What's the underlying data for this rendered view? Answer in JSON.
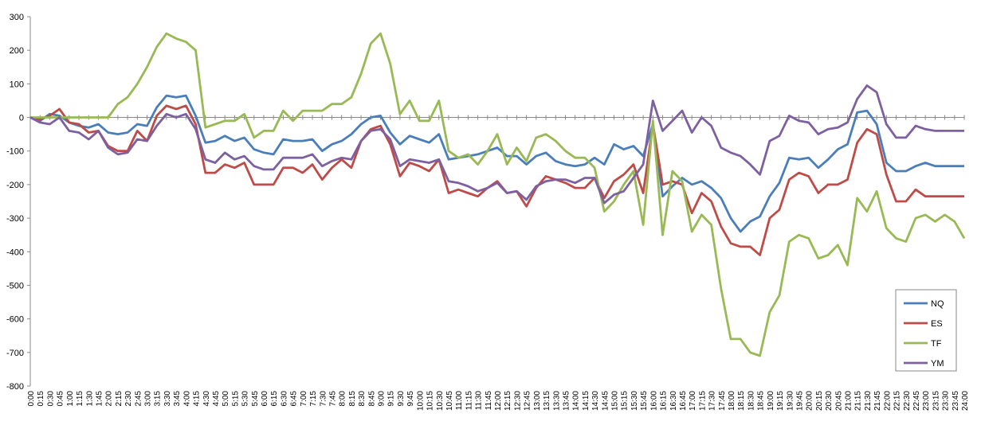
{
  "chart_data": {
    "type": "line",
    "ylim": [
      -800,
      300
    ],
    "yticks": [
      300,
      200,
      100,
      0,
      -100,
      -200,
      -300,
      -400,
      -500,
      -600,
      -700,
      -800
    ],
    "x": [
      "0:00",
      "0:15",
      "0:30",
      "0:45",
      "1:00",
      "1:15",
      "1:30",
      "1:45",
      "2:00",
      "2:15",
      "2:30",
      "2:45",
      "3:00",
      "3:15",
      "3:30",
      "3:45",
      "4:00",
      "4:15",
      "4:30",
      "4:45",
      "5:00",
      "5:15",
      "5:30",
      "5:45",
      "6:00",
      "6:15",
      "6:30",
      "6:45",
      "7:00",
      "7:15",
      "7:30",
      "7:45",
      "8:00",
      "8:15",
      "8:30",
      "8:45",
      "9:00",
      "9:15",
      "9:30",
      "9:45",
      "10:00",
      "10:15",
      "10:30",
      "10:45",
      "11:00",
      "11:15",
      "11:30",
      "11:45",
      "12:00",
      "12:15",
      "12:30",
      "12:45",
      "13:00",
      "13:15",
      "13:30",
      "13:45",
      "14:00",
      "14:15",
      "14:30",
      "14:45",
      "15:00",
      "15:15",
      "15:30",
      "15:45",
      "16:00",
      "16:15",
      "16:30",
      "16:45",
      "17:00",
      "17:15",
      "17:30",
      "17:45",
      "18:00",
      "18:15",
      "18:30",
      "18:45",
      "19:00",
      "19:15",
      "19:30",
      "19:45",
      "20:00",
      "20:15",
      "20:30",
      "20:45",
      "21:00",
      "21:15",
      "21:30",
      "21:45",
      "22:00",
      "22:15",
      "22:30",
      "22:45",
      "23:00",
      "23:15",
      "23:30",
      "23:45",
      "24:00"
    ],
    "series": [
      {
        "name": "NQ",
        "color": "#4a7ebb",
        "values": [
          0,
          -10,
          10,
          5,
          -15,
          -25,
          -30,
          -20,
          -45,
          -50,
          -45,
          -20,
          -25,
          30,
          65,
          60,
          65,
          5,
          -75,
          -70,
          -55,
          -70,
          -60,
          -95,
          -105,
          -110,
          -65,
          -70,
          -70,
          -65,
          -100,
          -80,
          -70,
          -50,
          -20,
          0,
          5,
          -45,
          -80,
          -55,
          -65,
          -75,
          -50,
          -125,
          -120,
          -115,
          -110,
          -100,
          -90,
          -115,
          -115,
          -140,
          -115,
          -105,
          -130,
          -140,
          -145,
          -140,
          -120,
          -140,
          -80,
          -95,
          -85,
          -115,
          -20,
          -235,
          -205,
          -180,
          -200,
          -190,
          -210,
          -240,
          -300,
          -340,
          -310,
          -295,
          -235,
          -195,
          -120,
          -125,
          -120,
          -150,
          -125,
          -95,
          -80,
          15,
          20,
          -20,
          -135,
          -160,
          -160,
          -145,
          -135,
          -145,
          -145,
          -145,
          -145
        ]
      },
      {
        "name": "ES",
        "color": "#be4b48",
        "values": [
          0,
          -5,
          5,
          25,
          -15,
          -20,
          -45,
          -40,
          -85,
          -100,
          -100,
          -40,
          -70,
          5,
          35,
          25,
          35,
          -20,
          -165,
          -165,
          -140,
          -150,
          -135,
          -200,
          -200,
          -200,
          -150,
          -150,
          -165,
          -140,
          -185,
          -150,
          -125,
          -150,
          -70,
          -35,
          -25,
          -80,
          -175,
          -135,
          -145,
          -160,
          -125,
          -225,
          -215,
          -225,
          -235,
          -210,
          -190,
          -225,
          -220,
          -265,
          -210,
          -175,
          -185,
          -195,
          -210,
          -210,
          -180,
          -240,
          -190,
          -170,
          -140,
          -225,
          -20,
          -200,
          -190,
          -200,
          -285,
          -225,
          -250,
          -325,
          -375,
          -385,
          -385,
          -410,
          -300,
          -275,
          -185,
          -165,
          -175,
          -225,
          -200,
          -200,
          -185,
          -75,
          -35,
          -50,
          -170,
          -250,
          -250,
          -215,
          -235,
          -235,
          -235,
          -235,
          -235
        ]
      },
      {
        "name": "TF",
        "color": "#98b954",
        "values": [
          0,
          0,
          0,
          0,
          0,
          0,
          0,
          0,
          0,
          40,
          60,
          100,
          150,
          210,
          250,
          235,
          225,
          200,
          -30,
          -20,
          -10,
          -10,
          10,
          -60,
          -40,
          -40,
          20,
          -10,
          20,
          20,
          20,
          40,
          40,
          60,
          130,
          220,
          250,
          160,
          10,
          50,
          -10,
          -10,
          50,
          -100,
          -120,
          -110,
          -140,
          -100,
          -50,
          -140,
          -90,
          -130,
          -60,
          -50,
          -70,
          -100,
          -120,
          -120,
          -150,
          -280,
          -250,
          -200,
          -160,
          -320,
          -10,
          -350,
          -160,
          -190,
          -340,
          -290,
          -320,
          -510,
          -660,
          -660,
          -700,
          -710,
          -580,
          -530,
          -370,
          -350,
          -360,
          -420,
          -410,
          -380,
          -440,
          -240,
          -280,
          -220,
          -330,
          -360,
          -370,
          -300,
          -290,
          -310,
          -290,
          -310,
          -360
        ]
      },
      {
        "name": "YM",
        "color": "#7d60a0",
        "values": [
          0,
          -15,
          -20,
          0,
          -40,
          -45,
          -65,
          -40,
          -90,
          -110,
          -105,
          -65,
          -70,
          -25,
          10,
          0,
          10,
          -35,
          -125,
          -135,
          -105,
          -125,
          -115,
          -145,
          -155,
          -155,
          -120,
          -120,
          -120,
          -110,
          -145,
          -130,
          -120,
          -125,
          -70,
          -40,
          -35,
          -65,
          -145,
          -125,
          -130,
          -135,
          -125,
          -190,
          -195,
          -205,
          -220,
          -210,
          -195,
          -225,
          -220,
          -245,
          -205,
          -190,
          -185,
          -185,
          -195,
          -180,
          -180,
          -255,
          -230,
          -220,
          -180,
          -140,
          50,
          -40,
          -10,
          20,
          -45,
          0,
          -25,
          -90,
          -105,
          -115,
          -140,
          -170,
          -70,
          -55,
          5,
          -10,
          -15,
          -50,
          -35,
          -30,
          -15,
          55,
          95,
          75,
          -20,
          -60,
          -60,
          -25,
          -35,
          -40,
          -40,
          -40,
          -40
        ]
      }
    ],
    "legend_position": "lower-right",
    "grid": false
  }
}
